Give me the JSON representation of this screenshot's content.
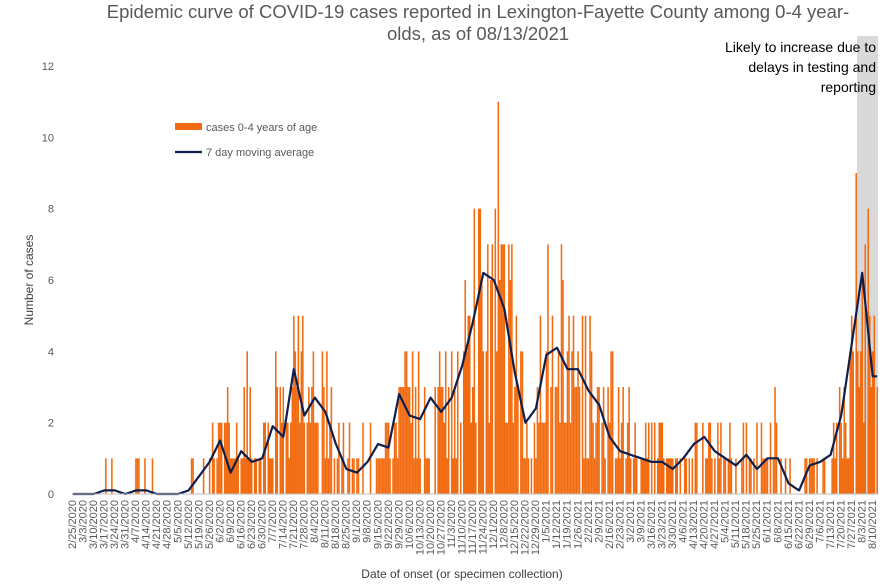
{
  "chart_data": {
    "type": "bar",
    "title_line1": "Epidemic curve of COVID-19 cases reported in Lexington-Fayette County among 0-4 year-",
    "title_line2": "olds, as of 08/13/2021",
    "xlabel": "Date of onset (or specimen collection)",
    "ylabel": "Number of cases",
    "ylim": [
      0,
      12
    ],
    "yticks": [
      0,
      2,
      4,
      6,
      8,
      10,
      12
    ],
    "grid": false,
    "legend_placement": "upper-left",
    "x_start": "2020-02-25",
    "x_end": "2021-08-13",
    "x_tick_labels": [
      "2/25/2020",
      "3/3/2020",
      "3/10/2020",
      "3/17/2020",
      "3/24/2020",
      "3/31/2020",
      "4/7/2020",
      "4/14/2020",
      "4/21/2020",
      "4/28/2020",
      "5/5/2020",
      "5/12/2020",
      "5/19/2020",
      "5/26/2020",
      "6/2/2020",
      "6/9/2020",
      "6/16/2020",
      "6/23/2020",
      "6/30/2020",
      "7/7/2020",
      "7/14/2020",
      "7/21/2020",
      "7/28/2020",
      "8/4/2020",
      "8/11/2020",
      "8/18/2020",
      "8/25/2020",
      "9/1/2020",
      "9/8/2020",
      "9/15/2020",
      "9/22/2020",
      "9/29/2020",
      "10/6/2020",
      "10/13/2020",
      "10/20/2020",
      "10/27/2020",
      "11/3/2020",
      "11/10/2020",
      "11/17/2020",
      "11/24/2020",
      "12/1/2020",
      "12/8/2020",
      "12/15/2020",
      "12/22/2020",
      "12/29/2020",
      "1/5/2021",
      "1/12/2021",
      "1/19/2021",
      "1/26/2021",
      "2/2/2021",
      "2/9/2021",
      "2/16/2021",
      "2/23/2021",
      "3/2/2021",
      "3/9/2021",
      "3/16/2021",
      "3/23/2021",
      "3/30/2021",
      "4/6/2021",
      "4/13/2021",
      "4/20/2021",
      "4/27/2021",
      "5/4/2021",
      "5/11/2021",
      "5/18/2021",
      "5/25/2021",
      "6/1/2021",
      "6/8/2021",
      "6/15/2021",
      "6/22/2021",
      "6/29/2021",
      "7/6/2021",
      "7/13/2021",
      "7/20/2021",
      "7/27/2021",
      "8/3/2021",
      "8/10/2021"
    ],
    "shaded_region": {
      "x_from": "2021-07-31",
      "x_to": "2021-08-13",
      "color": "#d9d9d9"
    },
    "annotation": [
      "Likely to increase due to",
      "delays in testing and",
      "reporting"
    ],
    "series": [
      {
        "name": "cases 0-4 years of age",
        "color": "#f26b10",
        "weekly_avg_daily_cases": [
          0,
          0,
          0,
          0.3,
          0.1,
          0,
          0.2,
          0.2,
          0,
          0,
          0,
          0.2,
          0.6,
          1.0,
          1.5,
          0.6,
          1.3,
          0.9,
          1.0,
          2.0,
          1.6,
          3.2,
          2.3,
          2.6,
          2.2,
          1.4,
          0.8,
          0.6,
          1.0,
          1.4,
          1.5,
          2.6,
          2.4,
          2.2,
          2.8,
          2.4,
          2.8,
          3.8,
          4.6,
          5.8,
          6.2,
          5.2,
          3.4,
          2.2,
          2.4,
          3.6,
          3.9,
          3.6,
          3.3,
          2.9,
          2.6,
          1.8,
          1.3,
          1.2,
          1.0,
          1.0,
          0.9,
          0.8,
          0.9,
          1.4,
          1.5,
          1.2,
          1.0,
          0.8,
          0.9,
          0.8,
          1.0,
          0.9,
          0.4,
          0.2,
          0.7,
          0.8,
          1.3,
          2.0,
          3.8,
          5.2,
          4.2
        ],
        "peak_values": [
          {
            "date": "2020-12-04",
            "value": 11
          },
          {
            "date": "2021-07-30",
            "value": 9
          }
        ]
      },
      {
        "name": "7 day moving average",
        "color": "#0e1f4d",
        "weekly_values": [
          0,
          0,
          0,
          0.1,
          0.1,
          0,
          0.1,
          0.1,
          0,
          0,
          0,
          0.1,
          0.5,
          0.9,
          1.5,
          0.6,
          1.2,
          0.9,
          1.0,
          1.9,
          1.6,
          3.5,
          2.2,
          2.7,
          2.3,
          1.4,
          0.7,
          0.6,
          0.9,
          1.4,
          1.3,
          2.8,
          2.2,
          2.1,
          2.7,
          2.3,
          2.7,
          3.6,
          4.8,
          6.2,
          6.0,
          5.2,
          3.4,
          2.0,
          2.4,
          3.9,
          4.1,
          3.5,
          3.5,
          2.9,
          2.5,
          1.6,
          1.2,
          1.1,
          1.0,
          0.9,
          0.9,
          0.7,
          1.0,
          1.4,
          1.6,
          1.2,
          1.0,
          0.8,
          1.1,
          0.7,
          1.0,
          1.0,
          0.3,
          0.1,
          0.8,
          0.9,
          1.1,
          2.2,
          4.2,
          6.2,
          3.3
        ]
      }
    ]
  }
}
